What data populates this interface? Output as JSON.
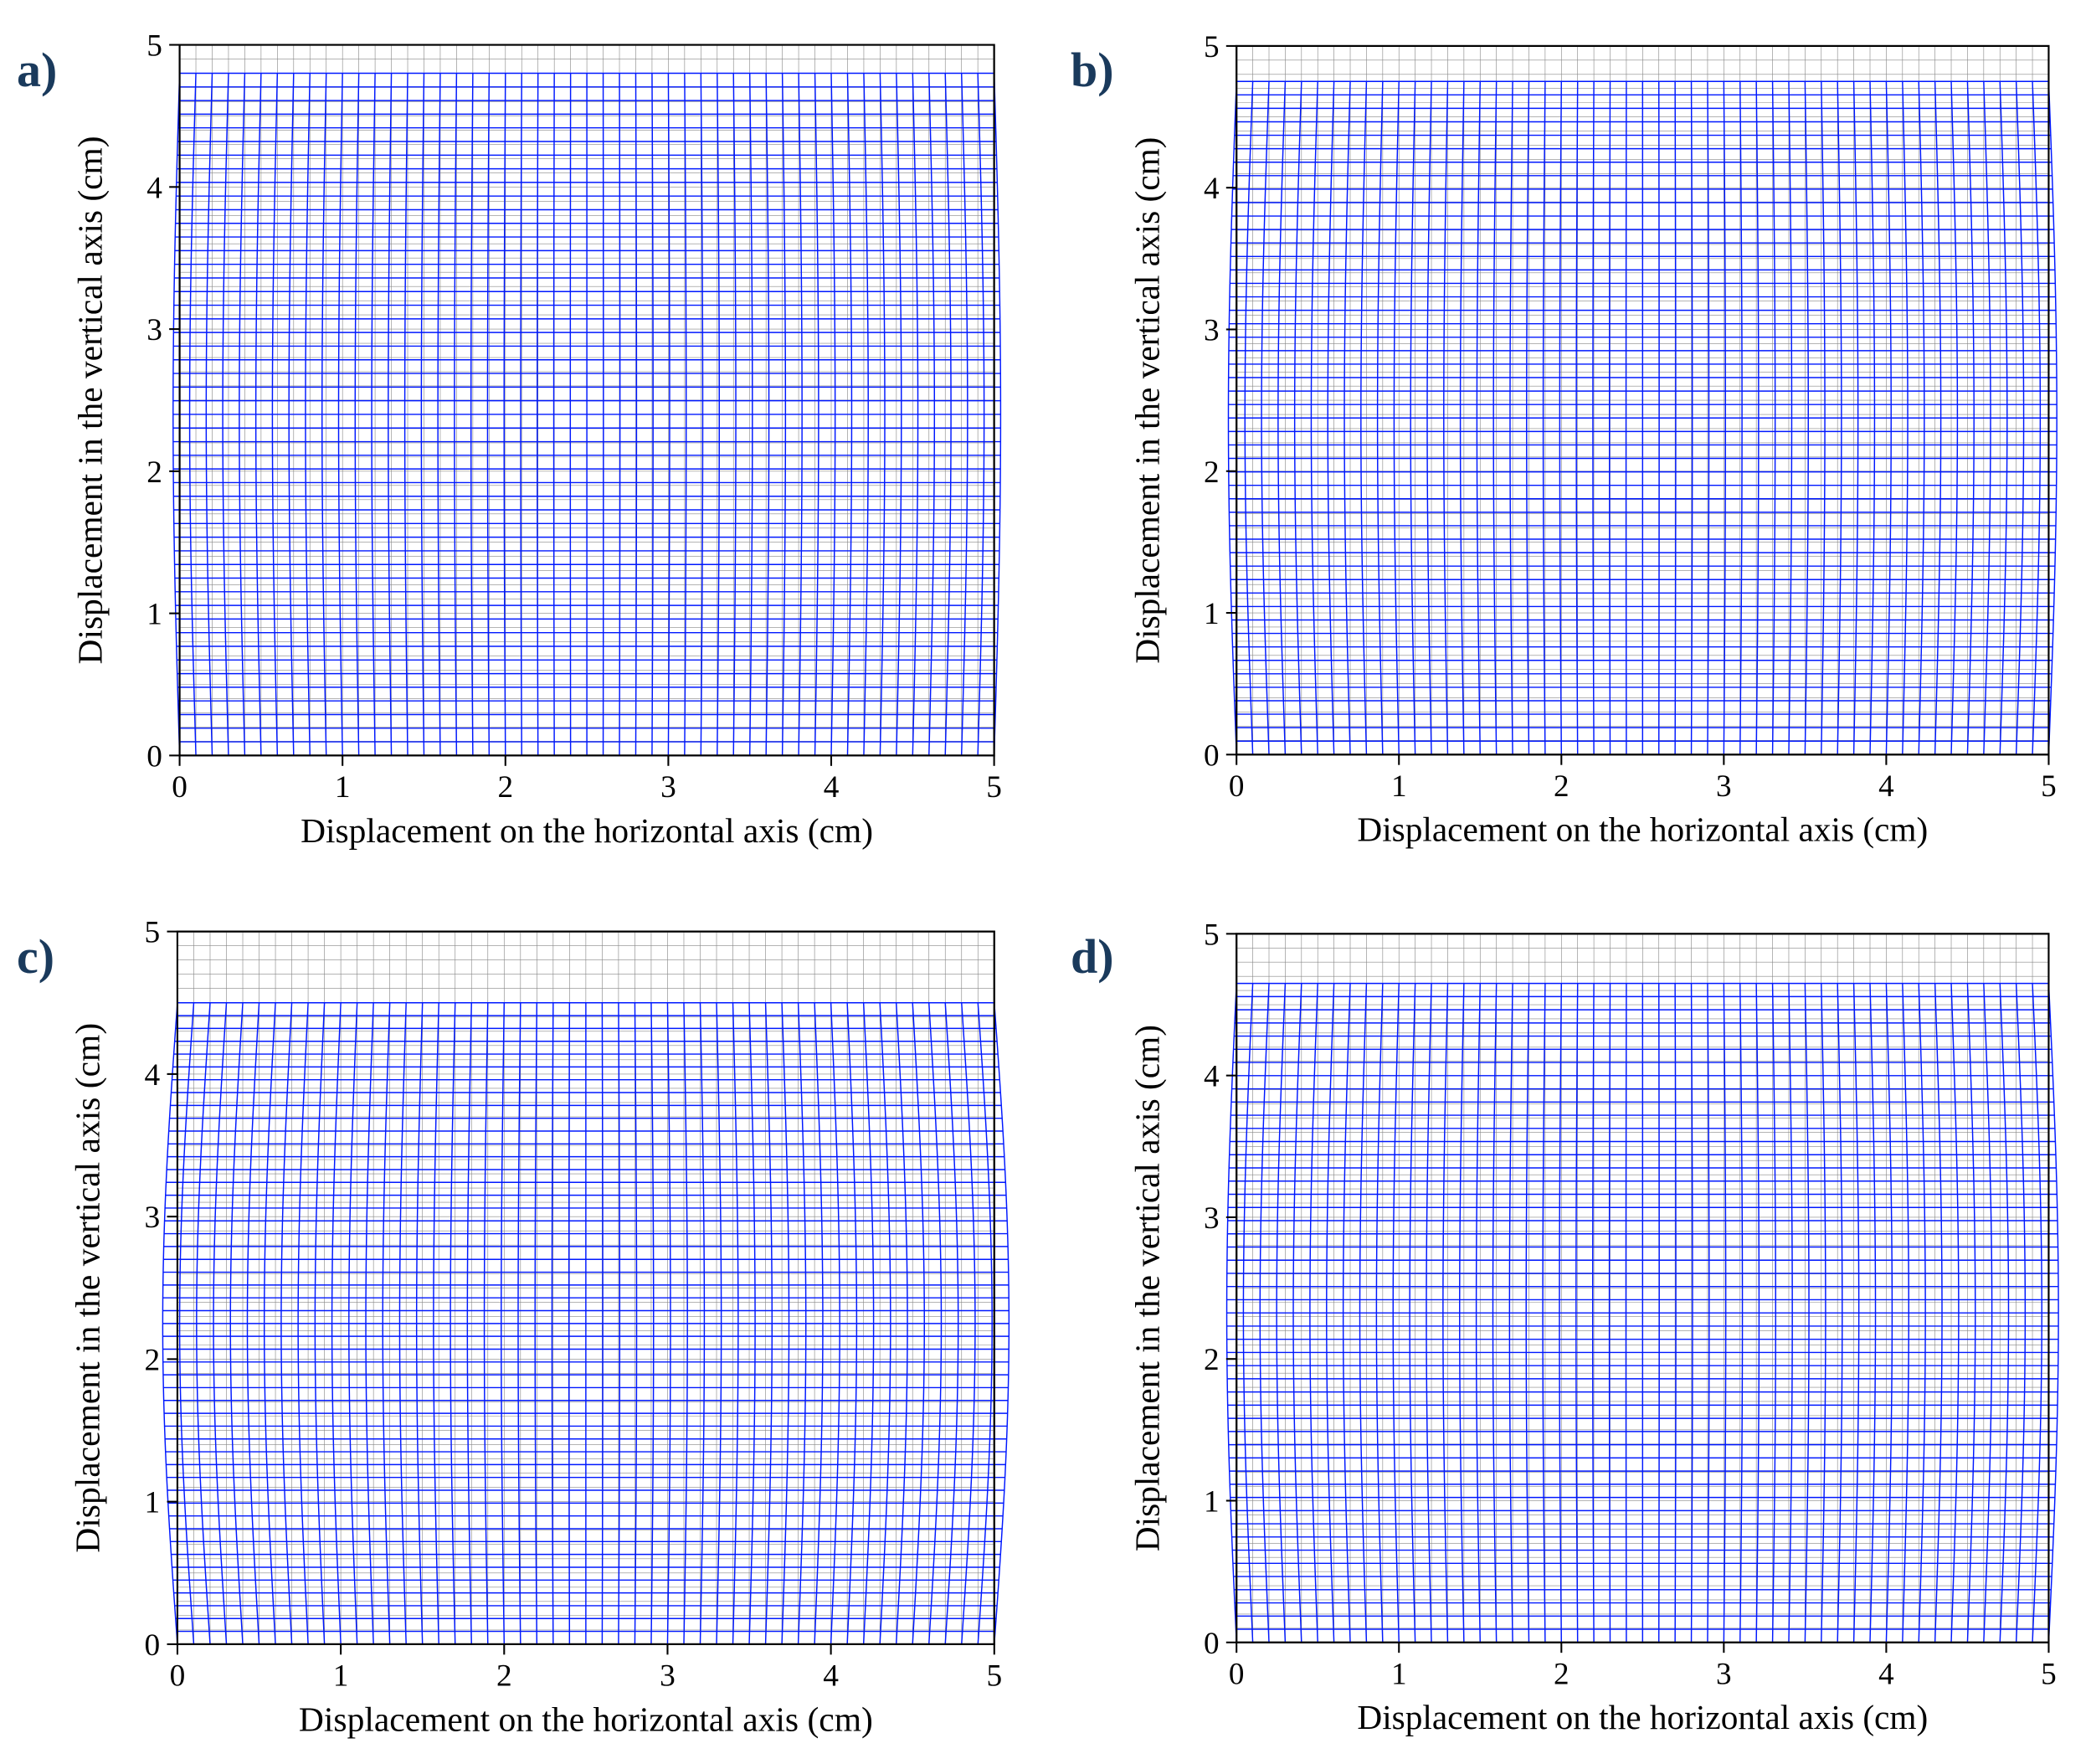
{
  "figure": {
    "layout": "2x2",
    "background_color": "#ffffff",
    "label_color": "#1a3a5c",
    "label_fontsize": 58,
    "label_fontweight": "bold",
    "panels": [
      {
        "id": "a",
        "label": "a)",
        "xlabel": "Displacement on the horizontal axis (cm)",
        "ylabel": "Displacement in the vertical axis (cm)",
        "axis_fontsize": 40,
        "tick_fontsize": 36,
        "xlim": [
          0,
          5
        ],
        "ylim": [
          0,
          5
        ],
        "xticks": [
          0,
          1,
          2,
          3,
          4,
          5
        ],
        "yticks": [
          0,
          1,
          2,
          3,
          4,
          5
        ],
        "axis_color": "#000000",
        "box_color": "#000000",
        "reference_grid": {
          "color": "#888888",
          "linewidth": 0.6,
          "nx": 51,
          "ny": 51,
          "x_range": [
            0,
            5
          ],
          "y_range": [
            0,
            5
          ]
        },
        "deformed_grid": {
          "color": "#0018ff",
          "linewidth": 1.4,
          "nx": 51,
          "ny": 51,
          "x_range": [
            0,
            5
          ],
          "y_range_top": 4.8,
          "y_range_bottom": 0.0,
          "bulge_amplitude": 0.04
        }
      },
      {
        "id": "b",
        "label": "b)",
        "xlabel": "Displacement on the horizontal axis (cm)",
        "ylabel": "Displacement in the vertical axis (cm)",
        "axis_fontsize": 40,
        "tick_fontsize": 36,
        "xlim": [
          0,
          5
        ],
        "ylim": [
          0,
          5
        ],
        "xticks": [
          0,
          1,
          2,
          3,
          4,
          5
        ],
        "yticks": [
          0,
          1,
          2,
          3,
          4,
          5
        ],
        "axis_color": "#000000",
        "box_color": "#000000",
        "reference_grid": {
          "color": "#888888",
          "linewidth": 0.6,
          "nx": 51,
          "ny": 51,
          "x_range": [
            0,
            5
          ],
          "y_range": [
            0,
            5
          ]
        },
        "deformed_grid": {
          "color": "#0018ff",
          "linewidth": 1.4,
          "nx": 51,
          "ny": 51,
          "x_range": [
            0,
            5
          ],
          "y_range_top": 4.75,
          "y_range_bottom": 0.0,
          "bulge_amplitude": 0.05
        }
      },
      {
        "id": "c",
        "label": "c)",
        "xlabel": "Displacement on the horizontal axis (cm)",
        "ylabel": "Displacement in the vertical axis (cm)",
        "axis_fontsize": 40,
        "tick_fontsize": 36,
        "xlim": [
          0,
          5
        ],
        "ylim": [
          0,
          5
        ],
        "xticks": [
          0,
          1,
          2,
          3,
          4,
          5
        ],
        "yticks": [
          0,
          1,
          2,
          3,
          4,
          5
        ],
        "axis_color": "#000000",
        "box_color": "#000000",
        "reference_grid": {
          "color": "#888888",
          "linewidth": 0.6,
          "nx": 51,
          "ny": 51,
          "x_range": [
            0,
            5
          ],
          "y_range": [
            0,
            5
          ]
        },
        "deformed_grid": {
          "color": "#0018ff",
          "linewidth": 1.4,
          "nx": 51,
          "ny": 51,
          "x_range": [
            0,
            5
          ],
          "y_range_top": 4.5,
          "y_range_bottom": 0.0,
          "bulge_amplitude": 0.09
        }
      },
      {
        "id": "d",
        "label": "d)",
        "xlabel": "Displacement on the horizontal axis (cm)",
        "ylabel": "Displacement in the vertical axis (cm)",
        "axis_fontsize": 40,
        "tick_fontsize": 36,
        "xlim": [
          0,
          5
        ],
        "ylim": [
          0,
          5
        ],
        "xticks": [
          0,
          1,
          2,
          3,
          4,
          5
        ],
        "yticks": [
          0,
          1,
          2,
          3,
          4,
          5
        ],
        "axis_color": "#000000",
        "box_color": "#000000",
        "reference_grid": {
          "color": "#888888",
          "linewidth": 0.6,
          "nx": 51,
          "ny": 51,
          "x_range": [
            0,
            5
          ],
          "y_range": [
            0,
            5
          ]
        },
        "deformed_grid": {
          "color": "#0018ff",
          "linewidth": 1.4,
          "nx": 51,
          "ny": 51,
          "x_range": [
            0,
            5
          ],
          "y_range_top": 4.65,
          "y_range_bottom": 0.0,
          "bulge_amplitude": 0.06
        }
      }
    ]
  }
}
